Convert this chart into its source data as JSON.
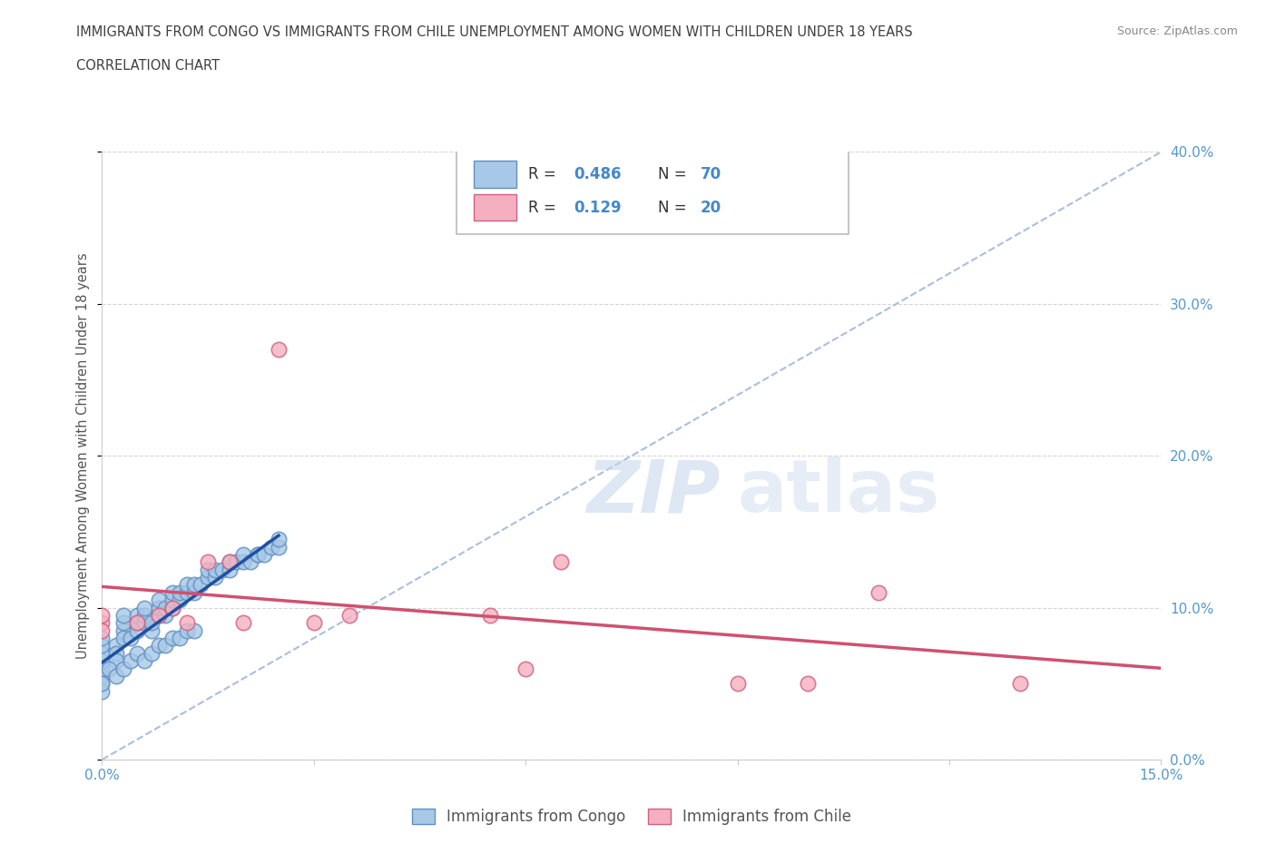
{
  "title_line1": "IMMIGRANTS FROM CONGO VS IMMIGRANTS FROM CHILE UNEMPLOYMENT AMONG WOMEN WITH CHILDREN UNDER 18 YEARS",
  "title_line2": "CORRELATION CHART",
  "source": "Source: ZipAtlas.com",
  "ylabel": "Unemployment Among Women with Children Under 18 years",
  "xlim": [
    0.0,
    0.15
  ],
  "ylim": [
    0.0,
    0.4
  ],
  "xticks": [
    0.0,
    0.03,
    0.06,
    0.09,
    0.12,
    0.15
  ],
  "yticks": [
    0.0,
    0.1,
    0.2,
    0.3,
    0.4
  ],
  "xtick_labels": [
    "0.0%",
    "",
    "",
    "",
    "",
    "15.0%"
  ],
  "ytick_labels_right": [
    "0.0%",
    "10.0%",
    "20.0%",
    "30.0%",
    "40.0%"
  ],
  "congo_color": "#a8c8e8",
  "chile_color": "#f4b0c0",
  "congo_edge_color": "#6090c0",
  "chile_edge_color": "#d06080",
  "congo_line_color": "#2050a0",
  "chile_line_color": "#d05070",
  "diag_line_color": "#a0b8d8",
  "R_congo": 0.486,
  "N_congo": 70,
  "R_chile": 0.129,
  "N_chile": 20,
  "legend_label_congo": "Immigrants from Congo",
  "legend_label_chile": "Immigrants from Chile",
  "watermark_zip": "ZIP",
  "watermark_atlas": "atlas",
  "background_color": "#ffffff",
  "grid_color": "#cccccc",
  "title_color": "#404040",
  "source_color": "#888888",
  "congo_x": [
    0.0,
    0.0,
    0.0,
    0.0,
    0.0,
    0.0,
    0.0,
    0.0,
    0.002,
    0.002,
    0.002,
    0.003,
    0.003,
    0.003,
    0.003,
    0.004,
    0.005,
    0.005,
    0.005,
    0.006,
    0.006,
    0.006,
    0.007,
    0.007,
    0.008,
    0.008,
    0.008,
    0.009,
    0.009,
    0.01,
    0.01,
    0.01,
    0.011,
    0.011,
    0.012,
    0.012,
    0.013,
    0.013,
    0.014,
    0.015,
    0.015,
    0.016,
    0.016,
    0.017,
    0.018,
    0.018,
    0.019,
    0.02,
    0.02,
    0.021,
    0.022,
    0.022,
    0.023,
    0.024,
    0.025,
    0.025,
    0.0,
    0.001,
    0.002,
    0.003,
    0.004,
    0.005,
    0.006,
    0.007,
    0.008,
    0.009,
    0.01,
    0.011,
    0.012,
    0.013
  ],
  "congo_y": [
    0.06,
    0.065,
    0.07,
    0.075,
    0.08,
    0.055,
    0.05,
    0.045,
    0.075,
    0.07,
    0.065,
    0.085,
    0.08,
    0.09,
    0.095,
    0.08,
    0.085,
    0.09,
    0.095,
    0.09,
    0.095,
    0.1,
    0.085,
    0.09,
    0.095,
    0.1,
    0.105,
    0.095,
    0.1,
    0.1,
    0.105,
    0.11,
    0.105,
    0.11,
    0.11,
    0.115,
    0.11,
    0.115,
    0.115,
    0.12,
    0.125,
    0.12,
    0.125,
    0.125,
    0.125,
    0.13,
    0.13,
    0.13,
    0.135,
    0.13,
    0.135,
    0.135,
    0.135,
    0.14,
    0.14,
    0.145,
    0.05,
    0.06,
    0.055,
    0.06,
    0.065,
    0.07,
    0.065,
    0.07,
    0.075,
    0.075,
    0.08,
    0.08,
    0.085,
    0.085
  ],
  "chile_x": [
    0.0,
    0.0,
    0.0,
    0.005,
    0.008,
    0.01,
    0.012,
    0.015,
    0.018,
    0.02,
    0.025,
    0.03,
    0.035,
    0.055,
    0.06,
    0.065,
    0.09,
    0.1,
    0.11,
    0.13
  ],
  "chile_y": [
    0.09,
    0.085,
    0.095,
    0.09,
    0.095,
    0.1,
    0.09,
    0.13,
    0.13,
    0.09,
    0.27,
    0.09,
    0.095,
    0.095,
    0.06,
    0.13,
    0.05,
    0.05,
    0.11,
    0.05
  ]
}
